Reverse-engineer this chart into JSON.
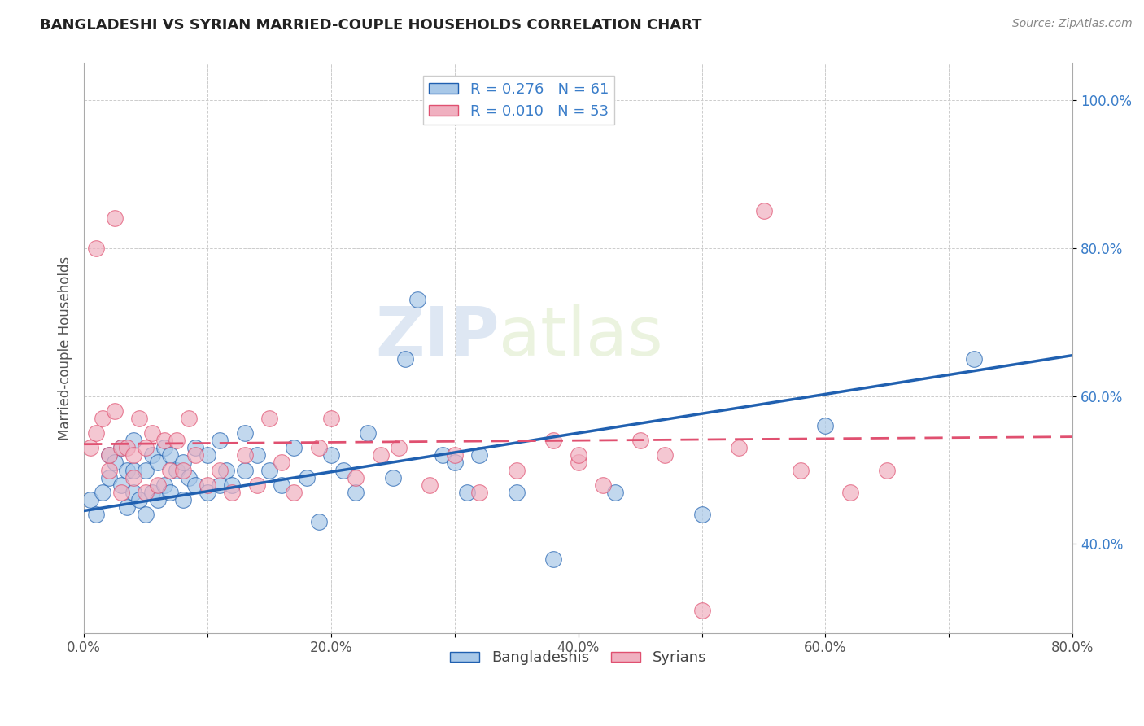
{
  "title": "BANGLADESHI VS SYRIAN MARRIED-COUPLE HOUSEHOLDS CORRELATION CHART",
  "source": "Source: ZipAtlas.com",
  "ylabel": "Married-couple Households",
  "xlim": [
    0.0,
    0.8
  ],
  "ylim": [
    0.28,
    1.05
  ],
  "xticks": [
    0.0,
    0.1,
    0.2,
    0.3,
    0.4,
    0.5,
    0.6,
    0.7,
    0.8
  ],
  "xticklabels": [
    "0.0%",
    "",
    "20.0%",
    "",
    "40.0%",
    "",
    "60.0%",
    "",
    "80.0%"
  ],
  "yticks": [
    0.4,
    0.6,
    0.8,
    1.0
  ],
  "yticklabels": [
    "40.0%",
    "60.0%",
    "80.0%",
    "100.0%"
  ],
  "bangladeshi_color": "#a8c8e8",
  "syrian_color": "#f0b0c0",
  "bangladeshi_line_color": "#2060b0",
  "syrian_line_color": "#e05070",
  "tick_label_color": "#3a7dc9",
  "legend_R_bangladeshi": "R = 0.276",
  "legend_N_bangladeshi": "N = 61",
  "legend_R_syrian": "R = 0.010",
  "legend_N_syrian": "N = 53",
  "watermark_zip": "ZIP",
  "watermark_atlas": "atlas",
  "bangladeshi_scatter_x": [
    0.005,
    0.01,
    0.015,
    0.02,
    0.02,
    0.025,
    0.03,
    0.03,
    0.035,
    0.035,
    0.04,
    0.04,
    0.04,
    0.045,
    0.05,
    0.05,
    0.055,
    0.055,
    0.06,
    0.06,
    0.065,
    0.065,
    0.07,
    0.07,
    0.075,
    0.08,
    0.08,
    0.085,
    0.09,
    0.09,
    0.1,
    0.1,
    0.11,
    0.11,
    0.115,
    0.12,
    0.13,
    0.13,
    0.14,
    0.15,
    0.16,
    0.17,
    0.18,
    0.19,
    0.2,
    0.21,
    0.22,
    0.23,
    0.25,
    0.26,
    0.27,
    0.29,
    0.3,
    0.31,
    0.32,
    0.35,
    0.38,
    0.43,
    0.5,
    0.6,
    0.72
  ],
  "bangladeshi_scatter_y": [
    0.46,
    0.44,
    0.47,
    0.49,
    0.52,
    0.51,
    0.48,
    0.53,
    0.45,
    0.5,
    0.47,
    0.5,
    0.54,
    0.46,
    0.44,
    0.5,
    0.47,
    0.52,
    0.46,
    0.51,
    0.48,
    0.53,
    0.47,
    0.52,
    0.5,
    0.46,
    0.51,
    0.49,
    0.48,
    0.53,
    0.47,
    0.52,
    0.48,
    0.54,
    0.5,
    0.48,
    0.5,
    0.55,
    0.52,
    0.5,
    0.48,
    0.53,
    0.49,
    0.43,
    0.52,
    0.5,
    0.47,
    0.55,
    0.49,
    0.65,
    0.73,
    0.52,
    0.51,
    0.47,
    0.52,
    0.47,
    0.38,
    0.47,
    0.44,
    0.56,
    0.65
  ],
  "syrian_scatter_x": [
    0.005,
    0.01,
    0.01,
    0.015,
    0.02,
    0.02,
    0.025,
    0.025,
    0.03,
    0.03,
    0.035,
    0.04,
    0.04,
    0.045,
    0.05,
    0.05,
    0.055,
    0.06,
    0.065,
    0.07,
    0.075,
    0.08,
    0.085,
    0.09,
    0.1,
    0.11,
    0.12,
    0.13,
    0.14,
    0.15,
    0.16,
    0.17,
    0.19,
    0.2,
    0.22,
    0.24,
    0.255,
    0.28,
    0.3,
    0.32,
    0.35,
    0.38,
    0.4,
    0.42,
    0.45,
    0.47,
    0.5,
    0.53,
    0.55,
    0.58,
    0.62,
    0.65,
    0.4
  ],
  "syrian_scatter_y": [
    0.53,
    0.55,
    0.8,
    0.57,
    0.5,
    0.52,
    0.58,
    0.84,
    0.47,
    0.53,
    0.53,
    0.49,
    0.52,
    0.57,
    0.47,
    0.53,
    0.55,
    0.48,
    0.54,
    0.5,
    0.54,
    0.5,
    0.57,
    0.52,
    0.48,
    0.5,
    0.47,
    0.52,
    0.48,
    0.57,
    0.51,
    0.47,
    0.53,
    0.57,
    0.49,
    0.52,
    0.53,
    0.48,
    0.52,
    0.47,
    0.5,
    0.54,
    0.51,
    0.48,
    0.54,
    0.52,
    0.31,
    0.53,
    0.85,
    0.5,
    0.47,
    0.5,
    0.52
  ],
  "bangladeshi_trend_x": [
    0.0,
    0.8
  ],
  "bangladeshi_trend_y_start": 0.445,
  "bangladeshi_trend_y_end": 0.655,
  "syrian_trend_x": [
    0.0,
    0.8
  ],
  "syrian_trend_y_start": 0.535,
  "syrian_trend_y_end": 0.545
}
